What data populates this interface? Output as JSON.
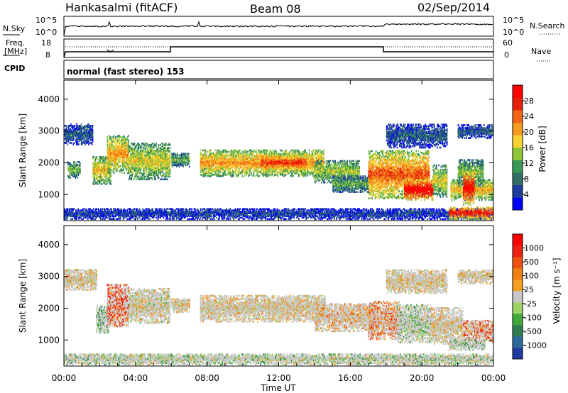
{
  "header": {
    "station": "Hankasalmi (fitACF)",
    "beam": "Beam 08",
    "date": "02/Sep/2014"
  },
  "noise_panel": {
    "left_label": "N.Sky",
    "right_label": "N.Search",
    "left_ticks": [
      "10^5",
      "10^0"
    ],
    "right_ticks": [
      "10^5",
      "10^0"
    ]
  },
  "freq_panel": {
    "left_label_1": "Freq.",
    "left_label_2": "[MHz]",
    "left_ticks": [
      "18",
      "8"
    ],
    "right_label": "Nave",
    "right_ticks": [
      "60",
      "0"
    ]
  },
  "cpid": {
    "label": "CPID",
    "value": "normal (fast stereo) 153"
  },
  "chart_data": [
    {
      "type": "heatmap",
      "quantity": "power",
      "ylabel": "Slant Range [km]",
      "yticks": [
        1000,
        2000,
        3000,
        4000
      ],
      "ylim": [
        180,
        4600
      ],
      "xlim": [
        0,
        24
      ],
      "colorbar": {
        "label": "Power [dB]",
        "ticks": [
          "4",
          "8",
          "12",
          "16",
          "20",
          "24",
          "28"
        ],
        "colors": [
          "#0000ff",
          "#1c3c9e",
          "#2f6f67",
          "#3a9a55",
          "#8fc637",
          "#f7d230",
          "#f59b1e",
          "#f06414",
          "#e61e0a",
          "#ff0000"
        ]
      },
      "regions": [
        {
          "t": [
            0.0,
            1.6
          ],
          "r": [
            2550,
            3200
          ],
          "level": 0.2
        },
        {
          "t": [
            0.2,
            0.9
          ],
          "r": [
            1500,
            2000
          ],
          "level": 0.4
        },
        {
          "t": [
            1.6,
            2.6
          ],
          "r": [
            1300,
            2200
          ],
          "level": 0.55
        },
        {
          "t": [
            2.4,
            3.6
          ],
          "r": [
            1650,
            2850
          ],
          "level": 0.6
        },
        {
          "t": [
            3.6,
            5.9
          ],
          "r": [
            1450,
            2600
          ],
          "level": 0.5
        },
        {
          "t": [
            6.0,
            7.0
          ],
          "r": [
            1850,
            2300
          ],
          "level": 0.35
        },
        {
          "t": [
            7.6,
            14.5
          ],
          "r": [
            1550,
            2400
          ],
          "level": 0.62
        },
        {
          "t": [
            11.0,
            13.5
          ],
          "r": [
            1700,
            2250
          ],
          "level": 0.8
        },
        {
          "t": [
            14.0,
            16.5
          ],
          "r": [
            1350,
            2050
          ],
          "level": 0.45
        },
        {
          "t": [
            15.0,
            17.0
          ],
          "r": [
            1050,
            1550
          ],
          "level": 0.35
        },
        {
          "t": [
            17.0,
            20.4
          ],
          "r": [
            850,
            2350
          ],
          "level": 0.72
        },
        {
          "t": [
            19.0,
            20.6
          ],
          "r": [
            800,
            1450
          ],
          "level": 0.95
        },
        {
          "t": [
            20.6,
            21.4
          ],
          "r": [
            900,
            1900
          ],
          "level": 0.5
        },
        {
          "t": [
            18.0,
            21.4
          ],
          "r": [
            2450,
            3200
          ],
          "level": 0.2
        },
        {
          "t": [
            21.6,
            24.0
          ],
          "r": [
            800,
            1450
          ],
          "level": 0.58
        },
        {
          "t": [
            22.0,
            23.4
          ],
          "r": [
            1250,
            2100
          ],
          "level": 0.4
        },
        {
          "t": [
            22.3,
            22.9
          ],
          "r": [
            650,
            1700
          ],
          "level": 0.9
        },
        {
          "t": [
            22.0,
            24.0
          ],
          "r": [
            2750,
            3200
          ],
          "level": 0.2
        },
        {
          "t": [
            0.0,
            24.0
          ],
          "r": [
            200,
            550
          ],
          "level": 0.15
        },
        {
          "t": [
            21.5,
            24.0
          ],
          "r": [
            200,
            600
          ],
          "level": 0.85
        }
      ]
    },
    {
      "type": "heatmap",
      "quantity": "velocity",
      "ylabel": "Slant Range [km]",
      "xlabel": "Time UT",
      "yticks": [
        1000,
        2000,
        3000,
        4000
      ],
      "xticks": [
        "00:00",
        "04:00",
        "08:00",
        "12:00",
        "16:00",
        "20:00",
        "00:00"
      ],
      "ylim": [
        180,
        4600
      ],
      "xlim": [
        0,
        24
      ],
      "colorbar": {
        "label": "Velocity [m s⁻¹]",
        "ticks": [
          "1000",
          "500",
          "100",
          "25",
          "-25",
          "-100",
          "-500",
          "-1000"
        ],
        "colors": [
          "#1f3aa0",
          "#2d6a9a",
          "#2e7d50",
          "#3faa3a",
          "#9fd36a",
          "#c8c8c8",
          "#f4a020",
          "#f08010",
          "#f05010",
          "#f02010",
          "#ff0000"
        ]
      },
      "regions": [
        {
          "t": [
            0.0,
            1.8
          ],
          "r": [
            2550,
            3200
          ],
          "v": 0.55
        },
        {
          "t": [
            1.8,
            2.6
          ],
          "r": [
            1200,
            2100
          ],
          "v": 0.35
        },
        {
          "t": [
            2.4,
            3.6
          ],
          "r": [
            1400,
            2750
          ],
          "v": 0.8
        },
        {
          "t": [
            3.6,
            5.9
          ],
          "r": [
            1500,
            2600
          ],
          "v": 0.5
        },
        {
          "t": [
            6.0,
            7.0
          ],
          "r": [
            1850,
            2300
          ],
          "v": 0.55
        },
        {
          "t": [
            7.6,
            14.6
          ],
          "r": [
            1550,
            2400
          ],
          "v": 0.55
        },
        {
          "t": [
            14.0,
            17.5
          ],
          "r": [
            1250,
            2150
          ],
          "v": 0.6
        },
        {
          "t": [
            17.0,
            18.8
          ],
          "r": [
            1000,
            2200
          ],
          "v": 0.7
        },
        {
          "t": [
            18.6,
            20.5
          ],
          "r": [
            900,
            2100
          ],
          "v": 0.4
        },
        {
          "t": [
            20.5,
            22.3
          ],
          "r": [
            850,
            2000
          ],
          "v": 0.55
        },
        {
          "t": [
            22.3,
            24.0
          ],
          "r": [
            900,
            1600
          ],
          "v": 0.75
        },
        {
          "t": [
            18.0,
            21.4
          ],
          "r": [
            2450,
            3200
          ],
          "v": 0.55
        },
        {
          "t": [
            22.0,
            24.0
          ],
          "r": [
            2750,
            3200
          ],
          "v": 0.55
        },
        {
          "t": [
            0.0,
            24.0
          ],
          "r": [
            200,
            550
          ],
          "v": 0.42
        },
        {
          "t": [
            21.5,
            23.5
          ],
          "r": [
            650,
            1000
          ],
          "v": 0.38
        }
      ]
    }
  ]
}
